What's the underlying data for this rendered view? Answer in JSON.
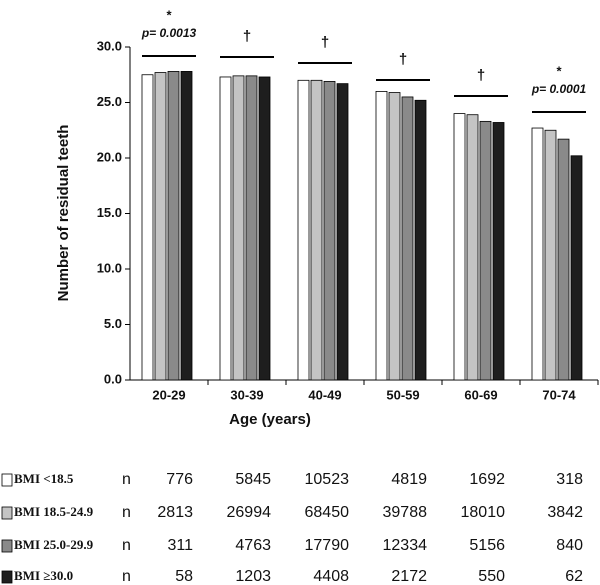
{
  "chart_data": {
    "type": "bar",
    "x_label": "Age (years)",
    "y_label": "Number of residual teeth",
    "categories": [
      "20-29",
      "30-39",
      "40-49",
      "50-59",
      "60-69",
      "70-74"
    ],
    "series": [
      {
        "name": "BMI <18.5",
        "color": "#ffffff",
        "values": [
          27.5,
          27.3,
          27.0,
          26.0,
          24.0,
          22.7
        ],
        "n": [
          776,
          5845,
          10523,
          4819,
          1692,
          318
        ]
      },
      {
        "name": "BMI 18.5-24.9",
        "color": "#c4c4c4",
        "values": [
          27.7,
          27.4,
          27.0,
          25.9,
          23.9,
          22.5
        ],
        "n": [
          2813,
          26994,
          68450,
          39788,
          18010,
          3842
        ]
      },
      {
        "name": "BMI 25.0-29.9",
        "color": "#8a8a8a",
        "values": [
          27.8,
          27.4,
          26.9,
          25.5,
          23.3,
          21.7
        ],
        "n": [
          311,
          4763,
          17790,
          12334,
          5156,
          840
        ]
      },
      {
        "name": "BMI ≥30.0",
        "color": "#1e1e1e",
        "values": [
          27.8,
          27.3,
          26.7,
          25.2,
          23.2,
          20.2
        ],
        "n": [
          58,
          1203,
          4408,
          2172,
          550,
          62
        ]
      }
    ],
    "n_label": "n",
    "annotations": [
      {
        "symbol": "*",
        "text": "p= 0.0013"
      },
      {
        "symbol": "†"
      },
      {
        "symbol": "†"
      },
      {
        "symbol": "†"
      },
      {
        "symbol": "†"
      },
      {
        "symbol": "*",
        "text": "p= 0.0001"
      }
    ],
    "ylim": [
      0,
      30
    ],
    "yticks": [
      {
        "value": 0,
        "label": "0.0"
      },
      {
        "value": 5,
        "label": "5.0"
      },
      {
        "value": 10,
        "label": "10.0"
      },
      {
        "value": 15,
        "label": "15.0"
      },
      {
        "value": 20,
        "label": "20.0"
      },
      {
        "value": 25,
        "label": "25.0"
      },
      {
        "value": 30,
        "label": "30.0"
      }
    ]
  }
}
